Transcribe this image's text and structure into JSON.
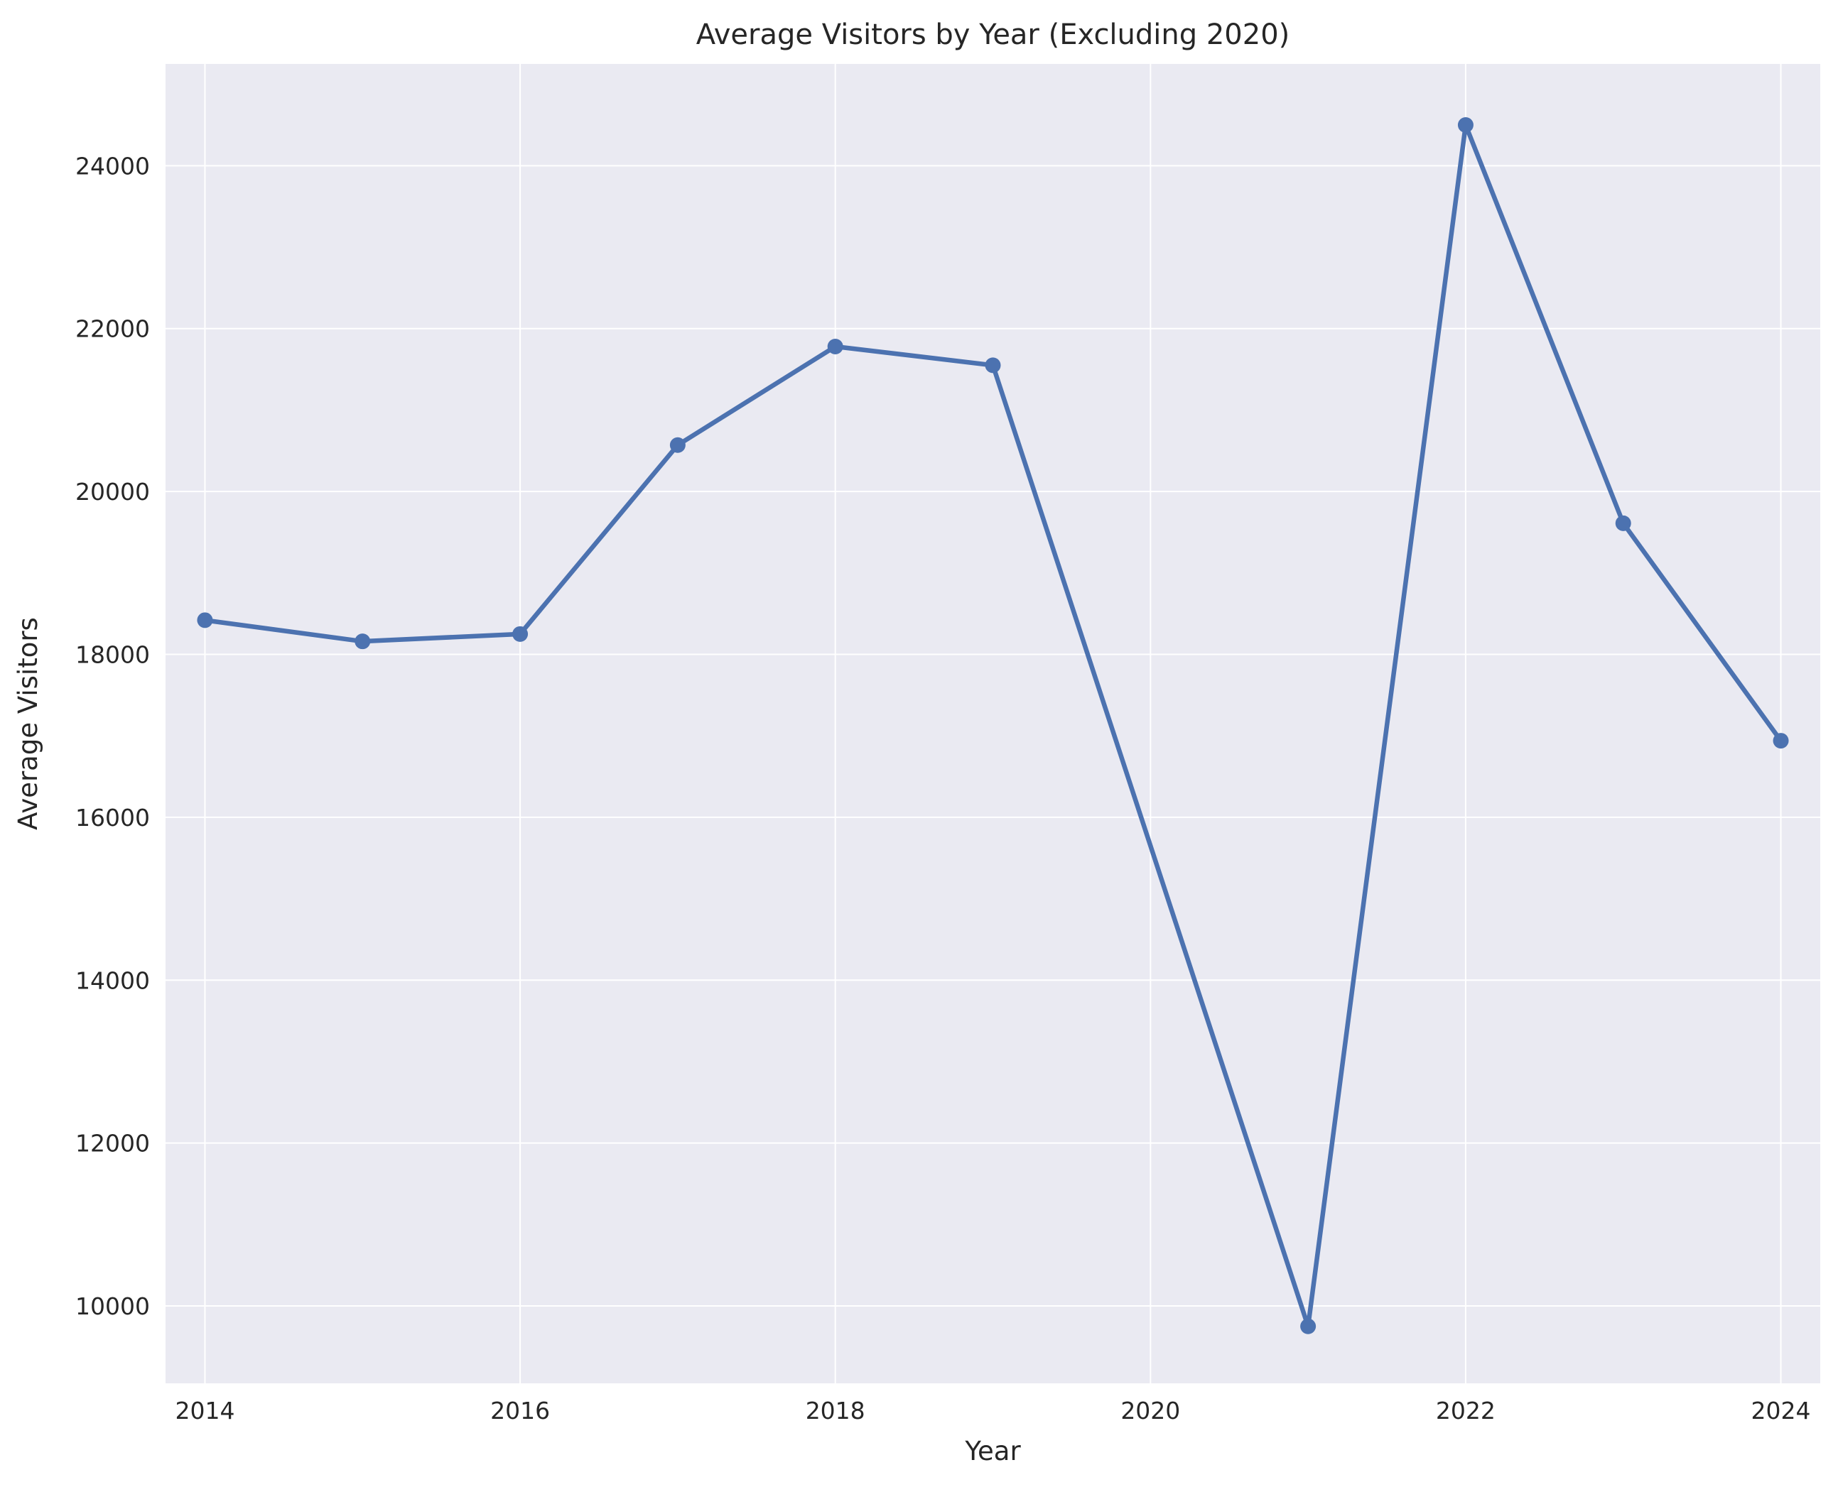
{
  "chart_data": {
    "type": "line",
    "title": "Average Visitors by Year (Excluding 2020)",
    "xlabel": "Year",
    "ylabel": "Average Visitors",
    "xlim": [
      2013.75,
      2024.25
    ],
    "ylim": [
      9050,
      25250
    ],
    "x_ticks": [
      2014,
      2016,
      2018,
      2020,
      2022,
      2024
    ],
    "y_ticks": [
      10000,
      12000,
      14000,
      16000,
      18000,
      20000,
      22000,
      24000
    ],
    "grid": true,
    "legend": "none",
    "series": [
      {
        "x": [
          2014,
          2015,
          2016,
          2017,
          2018,
          2019,
          2021,
          2022,
          2023,
          2024
        ],
        "values": [
          18420,
          18160,
          18250,
          20570,
          21780,
          21550,
          9750,
          24500,
          19610,
          16940
        ]
      }
    ],
    "colors": {
      "line": "#4c72b0",
      "plot_background": "#eaeaf2",
      "grid": "#ffffff"
    }
  }
}
